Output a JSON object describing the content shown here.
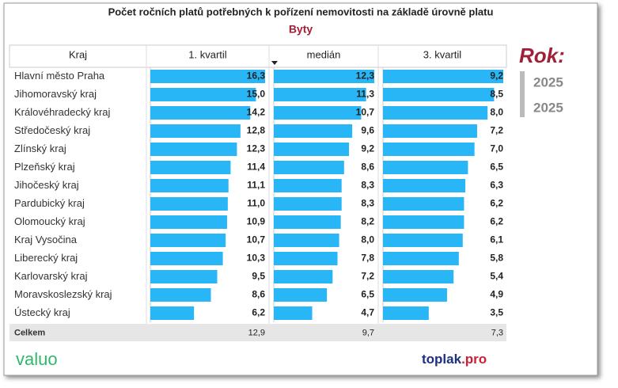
{
  "title": "Počet ročních platů potřebných k pořízení nemovitosti na základě úrovně platu",
  "subtitle": "Byty",
  "table": {
    "columns": [
      "Kraj",
      "1. kvartil",
      "medián",
      "3. kvartil"
    ],
    "bar_color": "#29b6f6",
    "rows": [
      {
        "name": "Hlavní město Praha",
        "values": [
          16.3,
          12.3,
          9.2
        ],
        "value_labels": [
          "16,3",
          "12,3",
          "9,2"
        ]
      },
      {
        "name": "Jihomoravský kraj",
        "values": [
          15.0,
          11.3,
          8.5
        ],
        "value_labels": [
          "15,0",
          "11,3",
          "8,5"
        ]
      },
      {
        "name": "Královéhradecký kraj",
        "values": [
          14.2,
          10.7,
          8.0
        ],
        "value_labels": [
          "14,2",
          "10,7",
          "8,0"
        ]
      },
      {
        "name": "Středočeský kraj",
        "values": [
          12.8,
          9.6,
          7.2
        ],
        "value_labels": [
          "12,8",
          "9,6",
          "7,2"
        ]
      },
      {
        "name": "Zlínský kraj",
        "values": [
          12.3,
          9.2,
          7.0
        ],
        "value_labels": [
          "12,3",
          "9,2",
          "7,0"
        ]
      },
      {
        "name": "Plzeňský kraj",
        "values": [
          11.4,
          8.6,
          6.5
        ],
        "value_labels": [
          "11,4",
          "8,6",
          "6,5"
        ]
      },
      {
        "name": "Jihočeský kraj",
        "values": [
          11.1,
          8.3,
          6.3
        ],
        "value_labels": [
          "11,1",
          "8,3",
          "6,3"
        ]
      },
      {
        "name": "Pardubický kraj",
        "values": [
          11.0,
          8.3,
          6.2
        ],
        "value_labels": [
          "11,0",
          "8,3",
          "6,2"
        ]
      },
      {
        "name": "Olomoucký kraj",
        "values": [
          10.9,
          8.2,
          6.2
        ],
        "value_labels": [
          "10,9",
          "8,2",
          "6,2"
        ]
      },
      {
        "name": "Kraj Vysočina",
        "values": [
          10.7,
          8.0,
          6.1
        ],
        "value_labels": [
          "10,7",
          "8,0",
          "6,1"
        ]
      },
      {
        "name": "Liberecký kraj",
        "values": [
          10.3,
          7.8,
          5.8
        ],
        "value_labels": [
          "10,3",
          "7,8",
          "5,8"
        ]
      },
      {
        "name": "Karlovarský kraj",
        "values": [
          9.5,
          7.2,
          5.4
        ],
        "value_labels": [
          "9,5",
          "7,2",
          "5,4"
        ]
      },
      {
        "name": "Moravskoslezský kraj",
        "values": [
          8.6,
          6.5,
          4.9
        ],
        "value_labels": [
          "8,6",
          "6,5",
          "4,9"
        ]
      },
      {
        "name": "Ústecký kraj",
        "values": [
          6.2,
          4.7,
          3.5
        ],
        "value_labels": [
          "6,2",
          "4,7",
          "3,5"
        ]
      }
    ],
    "total": {
      "name": "Celkem",
      "values": [
        12.9,
        9.7,
        7.3
      ],
      "value_labels": [
        "12,9",
        "9,7",
        "7,3"
      ]
    }
  },
  "year_filter": {
    "label": "Rok:",
    "items": [
      "2025",
      "2025"
    ]
  },
  "logos": [
    "valuo",
    "toplak",
    ".pro"
  ]
}
